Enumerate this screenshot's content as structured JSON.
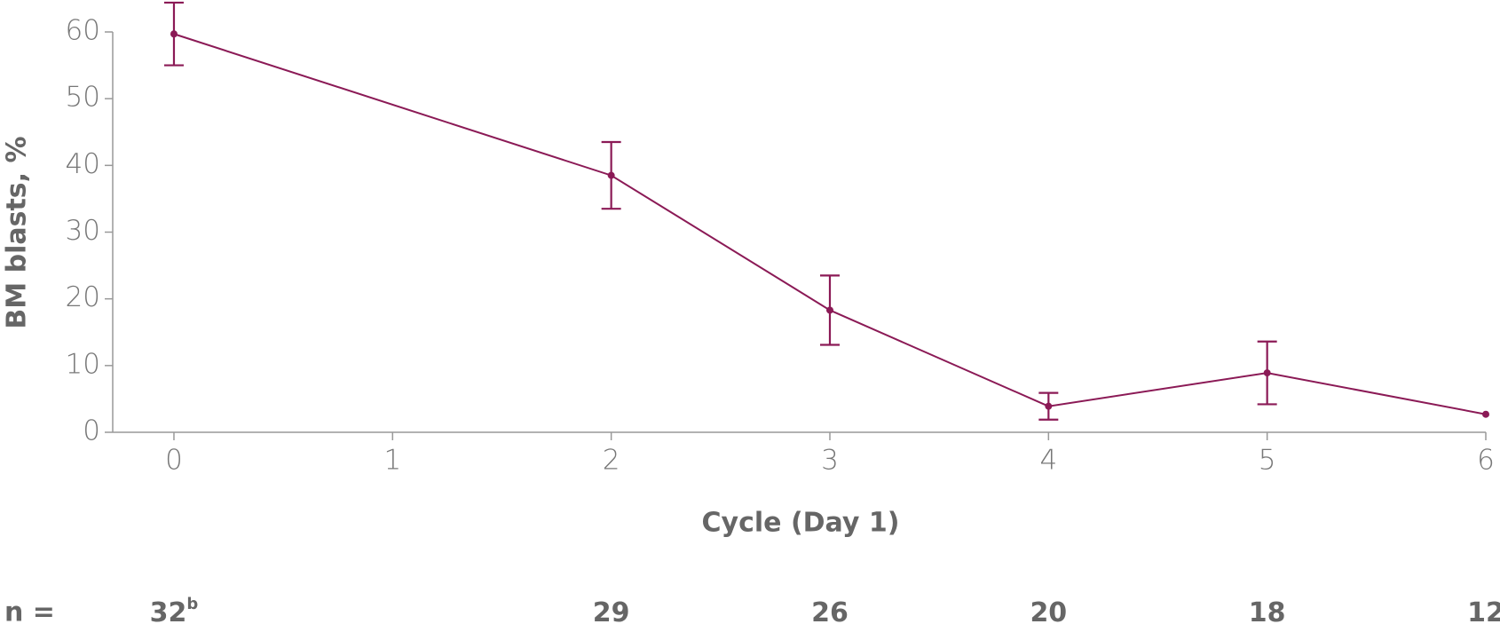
{
  "chart_data": {
    "type": "line",
    "x_label": "Cycle (Day 1)",
    "y_label": "BM blasts, %",
    "x": [
      0,
      2,
      3,
      4,
      5,
      6
    ],
    "series": [
      {
        "color": "#8b1a56",
        "values": [
          59.7,
          38.5,
          18.3,
          3.9,
          8.9,
          2.7
        ],
        "errors": [
          4.7,
          5,
          5.2,
          2,
          4.7,
          null
        ]
      }
    ],
    "xlim": [
      -0.28,
      6
    ],
    "xticks": [
      0,
      1,
      2,
      3,
      4,
      5,
      6
    ],
    "ylim": [
      0,
      60
    ],
    "yticks": [
      0,
      10,
      20,
      30,
      40,
      50,
      60
    ],
    "n_row": {
      "label": "n =",
      "counts": [
        32,
        29,
        26,
        20,
        18,
        12
      ],
      "superscripts": [
        "b",
        null,
        null,
        null,
        null,
        null
      ]
    }
  }
}
